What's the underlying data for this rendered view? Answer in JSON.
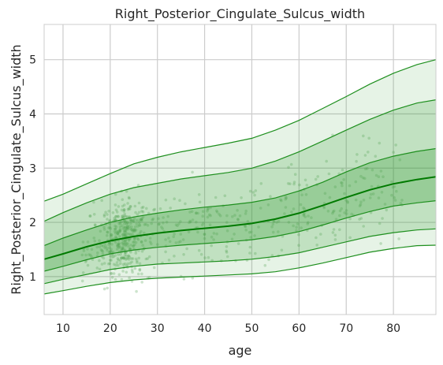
{
  "chart_data": {
    "type": "line",
    "title": "Right_Posterior_Cingulate_Sulcus_width",
    "xlabel": "age",
    "ylabel": "Right_Posterior_Cingulate_Sulcus_width",
    "xlim": [
      6,
      89
    ],
    "ylim": [
      0.3,
      5.65
    ],
    "x_ticks": [
      10,
      20,
      30,
      40,
      50,
      60,
      70,
      80
    ],
    "y_ticks": [
      1,
      2,
      3,
      4,
      5
    ],
    "grid": true,
    "colors": {
      "line": "#1e8f1e",
      "median": "#007a00",
      "fill": "#2e9a2e",
      "points": "#4a9e4a",
      "grid": "#cccccc",
      "background": "#ffffff"
    },
    "x": [
      6,
      10,
      15,
      20,
      25,
      30,
      35,
      40,
      45,
      50,
      55,
      60,
      65,
      70,
      75,
      80,
      85,
      89
    ],
    "series": [
      {
        "values": [
          2.39,
          2.52,
          2.71,
          2.9,
          3.08,
          3.2,
          3.3,
          3.38,
          3.46,
          3.55,
          3.7,
          3.88,
          4.1,
          4.32,
          4.55,
          4.75,
          4.91,
          5.0
        ]
      },
      {
        "values": [
          2.02,
          2.18,
          2.36,
          2.52,
          2.64,
          2.72,
          2.8,
          2.86,
          2.92,
          3.0,
          3.13,
          3.3,
          3.5,
          3.7,
          3.9,
          4.07,
          4.2,
          4.26
        ]
      },
      {
        "values": [
          1.57,
          1.71,
          1.86,
          2.0,
          2.1,
          2.17,
          2.23,
          2.28,
          2.32,
          2.37,
          2.45,
          2.58,
          2.74,
          2.93,
          3.1,
          3.22,
          3.31,
          3.36
        ]
      },
      {
        "values": [
          1.32,
          1.42,
          1.55,
          1.66,
          1.74,
          1.8,
          1.85,
          1.89,
          1.93,
          1.98,
          2.06,
          2.17,
          2.31,
          2.46,
          2.6,
          2.71,
          2.79,
          2.84
        ]
      },
      {
        "values": [
          1.1,
          1.19,
          1.31,
          1.42,
          1.49,
          1.54,
          1.58,
          1.61,
          1.64,
          1.68,
          1.74,
          1.83,
          1.95,
          2.08,
          2.2,
          2.3,
          2.36,
          2.4
        ]
      },
      {
        "values": [
          0.87,
          0.95,
          1.04,
          1.13,
          1.19,
          1.23,
          1.25,
          1.27,
          1.29,
          1.32,
          1.37,
          1.44,
          1.54,
          1.64,
          1.74,
          1.81,
          1.86,
          1.88
        ]
      },
      {
        "values": [
          0.68,
          0.74,
          0.82,
          0.89,
          0.94,
          0.97,
          0.99,
          1.01,
          1.03,
          1.05,
          1.09,
          1.16,
          1.25,
          1.35,
          1.45,
          1.52,
          1.57,
          1.58
        ]
      }
    ]
  }
}
